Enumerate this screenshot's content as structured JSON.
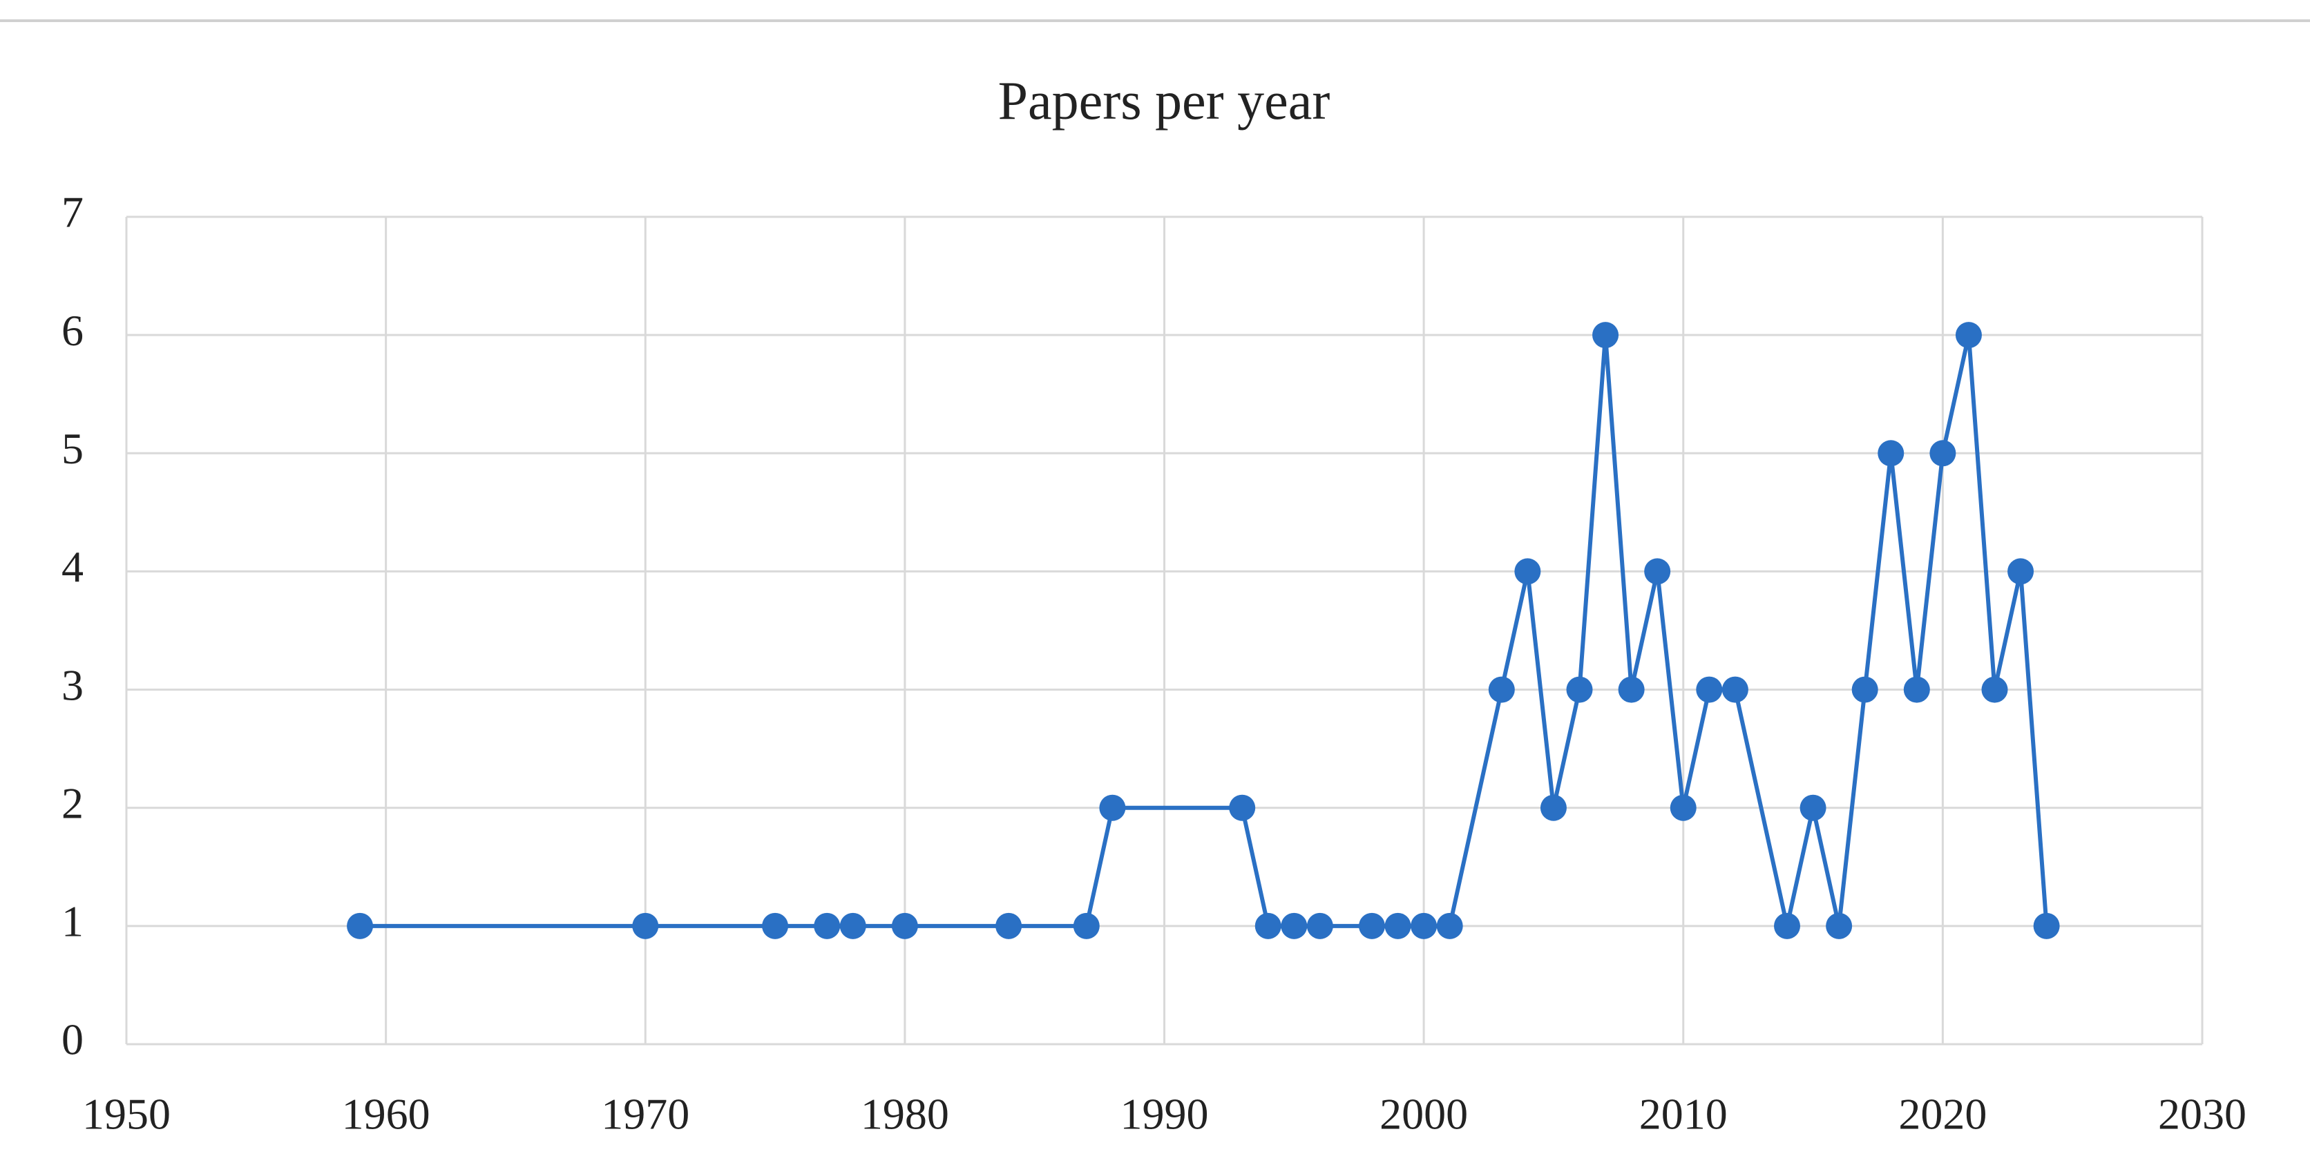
{
  "chart_data": {
    "type": "line",
    "title": "Papers per year",
    "x": [
      1959,
      1970,
      1975,
      1977,
      1978,
      1980,
      1984,
      1987,
      1988,
      1993,
      1994,
      1995,
      1996,
      1998,
      1999,
      2000,
      2001,
      2003,
      2004,
      2005,
      2006,
      2007,
      2008,
      2009,
      2010,
      2011,
      2012,
      2014,
      2015,
      2016,
      2017,
      2018,
      2019,
      2020,
      2021,
      2022,
      2023,
      2024
    ],
    "values": [
      1,
      1,
      1,
      1,
      1,
      1,
      1,
      1,
      2,
      2,
      1,
      1,
      1,
      1,
      1,
      1,
      1,
      3,
      4,
      2,
      3,
      6,
      3,
      4,
      2,
      3,
      3,
      1,
      2,
      1,
      3,
      5,
      3,
      5,
      6,
      3,
      4,
      1
    ],
    "color": "#2a70c4",
    "xlim": [
      1950,
      2030
    ],
    "xticks": [
      1950,
      1960,
      1970,
      1980,
      1990,
      2000,
      2010,
      2020,
      2030
    ],
    "ylim": [
      0,
      7
    ],
    "yticks": [
      0,
      1,
      2,
      3,
      4,
      5,
      6,
      7
    ],
    "grid": true
  }
}
